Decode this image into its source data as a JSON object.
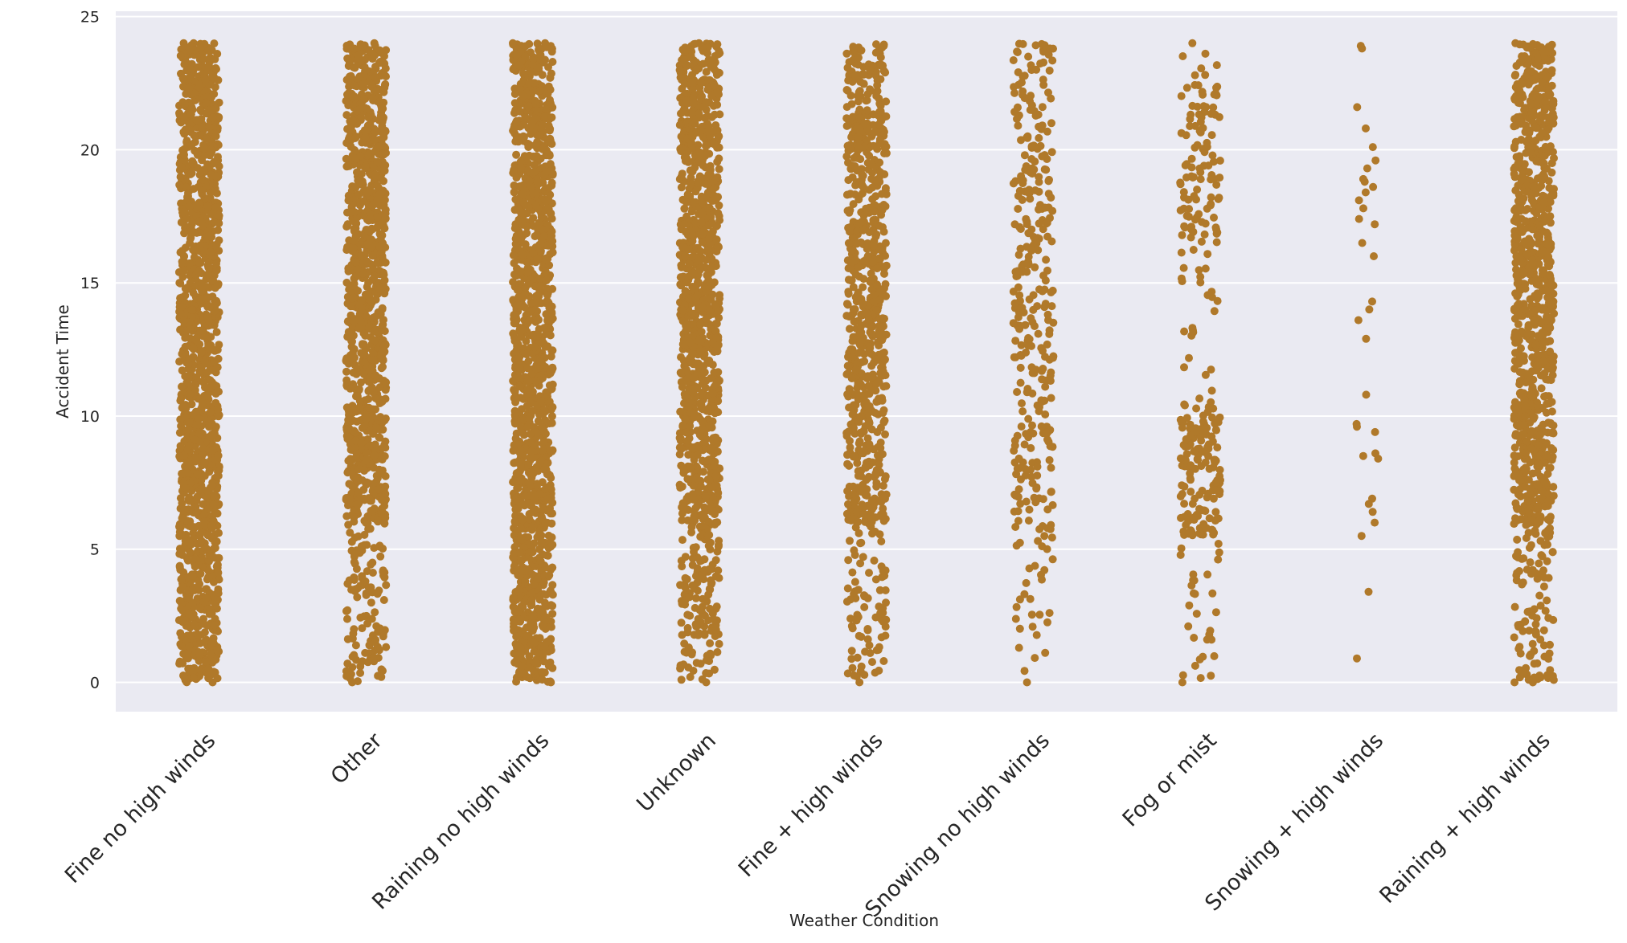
{
  "chart_data": {
    "type": "scatter",
    "subtype": "strip",
    "title": "",
    "xlabel": "Weather Condition",
    "ylabel": "Accident Time",
    "ylim": [
      -1.1,
      25.2
    ],
    "yticks": [
      0,
      5,
      10,
      15,
      20,
      25
    ],
    "grid": true,
    "style": "seaborn darkgrid",
    "marker_color": "#b0792a",
    "background_color": "#eaeaf2",
    "grid_color": "#ffffff",
    "categories": [
      "Fine no high winds",
      "Other",
      "Raining no high winds",
      "Unknown",
      "Fine + high winds",
      "Snowing no high winds",
      "Fog or mist",
      "Snowing + high winds",
      "Raining + high winds"
    ],
    "series": [
      {
        "category": "Fine no high winds",
        "ymin": 0,
        "ymax": 24,
        "density": "very dense (solid band)",
        "approx_points": 1400
      },
      {
        "category": "Other",
        "ymin": 0,
        "ymax": 24,
        "density": "dense, sparser below 6",
        "approx_points": 1100
      },
      {
        "category": "Raining no high winds",
        "ymin": 0,
        "ymax": 24,
        "density": "very dense (solid band)",
        "approx_points": 1400
      },
      {
        "category": "Unknown",
        "ymin": 0,
        "ymax": 24,
        "density": "dense, sparser below 6",
        "approx_points": 1100
      },
      {
        "category": "Fine + high winds",
        "ymin": 0,
        "ymax": 23.9,
        "density": "moderate",
        "approx_points": 800
      },
      {
        "category": "Snowing no high winds",
        "ymin": 0,
        "ymax": 23.8,
        "density": "sparse",
        "approx_points": 340
      },
      {
        "category": "Fog or mist",
        "ymin": 0,
        "ymax": 24,
        "density": "sparse, clustered 6-10 and 17-22",
        "approx_points": 300
      },
      {
        "category": "Snowing + high winds",
        "ymin": 0.9,
        "ymax": 23.9,
        "density": "very sparse",
        "approx_points": 38,
        "values": [
          23.9,
          23.8,
          21.6,
          20.8,
          20.1,
          19.6,
          19.3,
          18.9,
          18.8,
          18.6,
          18.4,
          18.1,
          17.8,
          17.4,
          17.2,
          16.5,
          16.0,
          14.3,
          14.0,
          13.6,
          12.9,
          10.8,
          9.7,
          9.6,
          9.4,
          8.6,
          8.5,
          8.4,
          6.9,
          6.7,
          6.4,
          6.0,
          5.5,
          3.4,
          0.9
        ]
      },
      {
        "category": "Raining + high winds",
        "ymin": 0,
        "ymax": 24,
        "density": "dense, sparser below 5",
        "approx_points": 1000
      }
    ]
  }
}
